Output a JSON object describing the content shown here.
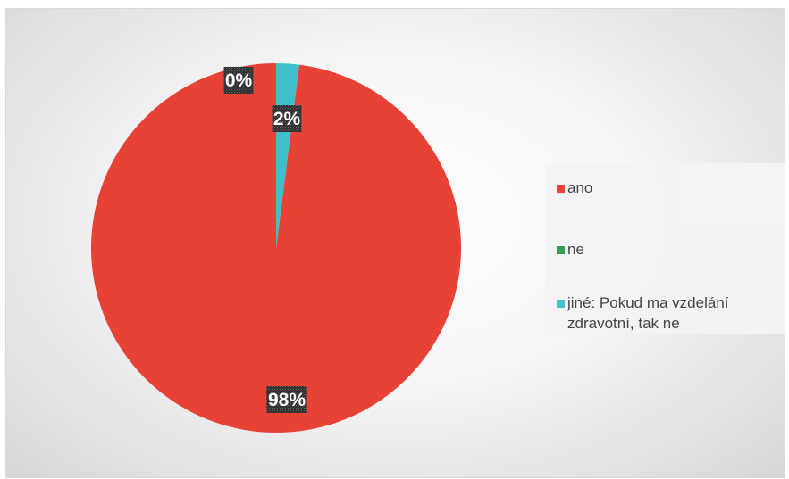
{
  "chart_data": {
    "type": "pie",
    "title": "",
    "categories": [
      "ano",
      "ne",
      "jiné: Pokud ma vzdelání zdravotní, tak ne"
    ],
    "values": [
      98,
      0,
      2
    ],
    "data_labels": [
      "98%",
      "0%",
      "2%"
    ],
    "colors": [
      "#e84135",
      "#2e9e4f",
      "#3fbfc9"
    ],
    "legend": {
      "position": "right",
      "entries": [
        "ano",
        "ne",
        "jiné: Pokud ma vzdelání zdravotní, tak ne"
      ]
    }
  }
}
